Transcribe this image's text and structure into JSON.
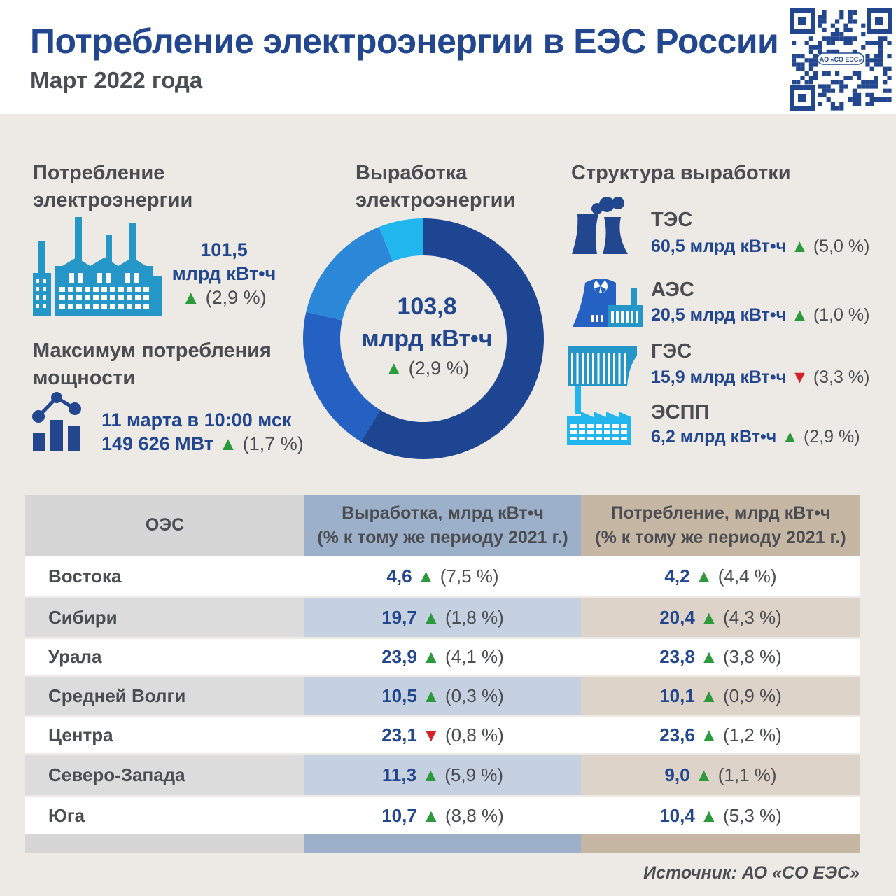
{
  "header": {
    "title": "Потребление электроэнергии в ЕЭС России",
    "subtitle": "Март 2022 года",
    "qr_label": "АО «СО ЕЭС»"
  },
  "consumption": {
    "title_line1": "Потребление",
    "title_line2": "электроэнергии",
    "value": "101,5",
    "unit": "млрд кВт•ч",
    "arrow": "▲",
    "change": "(2,9 %)"
  },
  "peak": {
    "title_line1": "Максимум потребления",
    "title_line2": "мощности",
    "date": "11 марта в 10:00 мск",
    "value": "149 626 МВт",
    "arrow": "▲",
    "change": "(1,7 %)"
  },
  "generation": {
    "title_line1": "Выработка",
    "title_line2": "электроэнергии",
    "value": "103,8",
    "unit": "млрд кВт•ч",
    "arrow": "▲",
    "change": "(2,9 %)"
  },
  "structure": {
    "title": "Структура выработки",
    "items": [
      {
        "name": "ТЭС",
        "value": "60,5 млрд кВт•ч",
        "arrow": "▲",
        "direction": "up",
        "change": "(5,0 %)"
      },
      {
        "name": "АЭС",
        "value": "20,5 млрд кВт•ч",
        "arrow": "▲",
        "direction": "up",
        "change": "(1,0 %)"
      },
      {
        "name": "ГЭС",
        "value": "15,9 млрд кВт•ч",
        "arrow": "▼",
        "direction": "down",
        "change": "(3,3 %)"
      },
      {
        "name": "ЭСПП",
        "value": "6,2 млрд кВт•ч",
        "arrow": "▲",
        "direction": "up",
        "change": "(2,9 %)"
      }
    ]
  },
  "chart_data": {
    "type": "pie",
    "style": "donut",
    "categories": [
      "ТЭС",
      "АЭС",
      "ГЭС",
      "ЭСПП"
    ],
    "values": [
      60.5,
      20.5,
      15.9,
      6.2
    ],
    "total": 103.8,
    "colors": [
      "#1e4592",
      "#2461c2",
      "#2b87d8",
      "#22b6ef"
    ]
  },
  "table": {
    "col_oes": "ОЭС",
    "col_gen_line1": "Выработка, млрд кВт•ч",
    "col_gen_line2": "(% к тому же периоду 2021 г.)",
    "col_con_line1": "Потребление, млрд кВт•ч",
    "col_con_line2": "(% к тому же периоду 2021 г.)",
    "rows": [
      {
        "name": "Востока",
        "gen": "4,6",
        "gen_arrow": "▲",
        "gen_dir": "up",
        "gen_change": "(7,5 %)",
        "con": "4,2",
        "con_arrow": "▲",
        "con_dir": "up",
        "con_change": "(4,4 %)"
      },
      {
        "name": "Сибири",
        "gen": "19,7",
        "gen_arrow": "▲",
        "gen_dir": "up",
        "gen_change": "(1,8 %)",
        "con": "20,4",
        "con_arrow": "▲",
        "con_dir": "up",
        "con_change": "(4,3 %)"
      },
      {
        "name": "Урала",
        "gen": "23,9",
        "gen_arrow": "▲",
        "gen_dir": "up",
        "gen_change": "(4,1 %)",
        "con": "23,8",
        "con_arrow": "▲",
        "con_dir": "up",
        "con_change": "(3,8 %)"
      },
      {
        "name": "Средней Волги",
        "gen": "10,5",
        "gen_arrow": "▲",
        "gen_dir": "up",
        "gen_change": "(0,3 %)",
        "con": "10,1",
        "con_arrow": "▲",
        "con_dir": "up",
        "con_change": "(0,9 %)"
      },
      {
        "name": "Центра",
        "gen": "23,1",
        "gen_arrow": "▼",
        "gen_dir": "down",
        "gen_change": "(0,8 %)",
        "con": "23,6",
        "con_arrow": "▲",
        "con_dir": "up",
        "con_change": "(1,2 %)"
      },
      {
        "name": "Северо-Запада",
        "gen": "11,3",
        "gen_arrow": "▲",
        "gen_dir": "up",
        "gen_change": "(5,9 %)",
        "con": "9,0",
        "con_arrow": "▲",
        "con_dir": "up",
        "con_change": "(1,1 %)"
      },
      {
        "name": "Юга",
        "gen": "10,7",
        "gen_arrow": "▲",
        "gen_dir": "up",
        "gen_change": "(8,8 %)",
        "con": "10,4",
        "con_arrow": "▲",
        "con_dir": "up",
        "con_change": "(5,3 %)"
      }
    ]
  },
  "source": "Источник: АО «СО ЕЭС»"
}
